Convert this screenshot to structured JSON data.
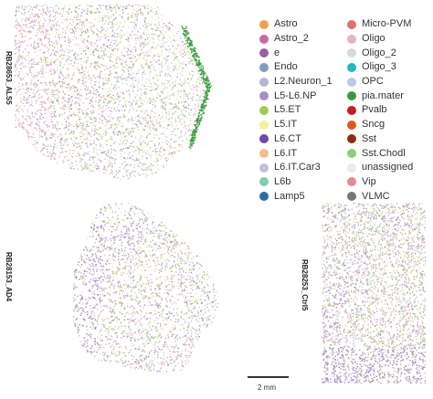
{
  "samples": [
    {
      "label": "RB28653_ALS5"
    },
    {
      "label": "RB28153_AD4"
    },
    {
      "label": "RB28253_Ctrl5"
    }
  ],
  "legend": [
    {
      "label": "Astro",
      "color": "#f0a050"
    },
    {
      "label": "Astro_2",
      "color": "#c56aa8"
    },
    {
      "label": "e",
      "color": "#9b5fa8"
    },
    {
      "label": "Endo",
      "color": "#7f9cc0"
    },
    {
      "label": "L2.Neuron_1",
      "color": "#b8b4d8"
    },
    {
      "label": "L5-L6.NP",
      "color": "#a58fc6"
    },
    {
      "label": "L5.ET",
      "color": "#9acd55"
    },
    {
      "label": "L5.IT",
      "color": "#f3f0a0"
    },
    {
      "label": "L6.CT",
      "color": "#6f49a8"
    },
    {
      "label": "L6.IT",
      "color": "#f0c090"
    },
    {
      "label": "L6.IT.Car3",
      "color": "#c8c0e0"
    },
    {
      "label": "L6b",
      "color": "#7fcfb0"
    },
    {
      "label": "Lamp5",
      "color": "#2b6aa8"
    },
    {
      "label": "Micro-PVM",
      "color": "#e07070"
    },
    {
      "label": "Oligo",
      "color": "#e8b0c8"
    },
    {
      "label": "Oligo_2",
      "color": "#d8d8d8"
    },
    {
      "label": "Oligo_3",
      "color": "#20b8c0"
    },
    {
      "label": "OPC",
      "color": "#b8c8e8"
    },
    {
      "label": "pia.mater",
      "color": "#3a9a3a"
    },
    {
      "label": "Pvalb",
      "color": "#c02020"
    },
    {
      "label": "Sncg",
      "color": "#e05818"
    },
    {
      "label": "Sst",
      "color": "#8a3010"
    },
    {
      "label": "Sst.Chodl",
      "color": "#8ad070"
    },
    {
      "label": "unassigned",
      "color": "#ececec"
    },
    {
      "label": "Vip",
      "color": "#e88890"
    },
    {
      "label": "VLMC",
      "color": "#777777"
    }
  ],
  "scale_bar": {
    "label": "2 mm"
  }
}
